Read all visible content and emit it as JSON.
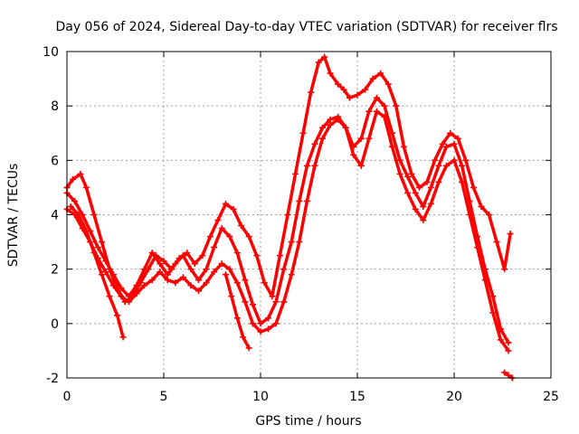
{
  "chart_data": {
    "type": "scatter",
    "title": "Day 056 of 2024, Sidereal Day-to-day VTEC variation (SDTVAR) for receiver flrs",
    "xlabel": "GPS time / hours",
    "ylabel": "SDTVAR / TECUs",
    "xlim": [
      0,
      25
    ],
    "ylim": [
      -2,
      10
    ],
    "xticks": [
      0,
      5,
      10,
      15,
      20,
      25
    ],
    "yticks": [
      -2,
      0,
      2,
      4,
      6,
      8,
      10
    ],
    "grid": true,
    "marker": "plus",
    "color": "#ff0000",
    "series": [
      {
        "x": [
          0.0,
          0.3,
          0.7,
          1.0,
          1.4,
          1.8,
          2.2,
          2.6,
          3.0,
          3.4,
          3.8,
          4.2,
          4.6,
          5.0,
          5.4,
          5.8,
          6.2,
          6.6,
          7.0,
          7.4,
          7.8,
          8.2,
          8.6,
          9.0,
          9.4,
          9.8,
          10.2,
          10.6,
          11.0,
          11.4,
          11.8,
          12.2,
          12.6,
          13.0,
          13.3,
          13.6,
          14.0,
          14.3,
          14.6,
          15.0,
          15.4,
          15.8,
          16.2,
          16.6,
          17.0,
          17.4,
          17.8,
          18.2,
          18.6,
          19.0,
          19.4,
          19.8,
          20.2,
          20.6,
          21.0,
          21.4,
          21.8,
          22.2,
          22.6,
          22.9
        ],
        "y": [
          5.0,
          5.3,
          5.5,
          5.0,
          4.0,
          3.0,
          2.0,
          1.3,
          0.8,
          1.0,
          1.5,
          2.0,
          2.5,
          2.3,
          2.0,
          2.4,
          2.6,
          2.2,
          2.5,
          3.2,
          3.8,
          4.4,
          4.2,
          3.6,
          3.2,
          2.5,
          1.5,
          1.0,
          2.5,
          4.0,
          5.5,
          7.0,
          8.5,
          9.6,
          9.8,
          9.2,
          8.8,
          8.6,
          8.3,
          8.4,
          8.6,
          9.0,
          9.2,
          8.8,
          8.0,
          6.5,
          5.5,
          5.0,
          5.2,
          6.0,
          6.6,
          7.0,
          6.8,
          6.0,
          5.0,
          4.3,
          4.0,
          3.0,
          2.0,
          3.3
        ]
      },
      {
        "x": [
          0.0,
          0.4,
          0.8,
          1.2,
          1.6,
          2.0,
          2.4,
          2.8,
          3.2,
          3.6,
          4.0,
          4.4,
          4.8,
          5.2,
          5.6,
          6.0,
          6.4,
          6.8,
          7.2,
          7.6,
          8.0,
          8.4,
          8.8,
          9.2,
          9.6,
          10.0,
          10.4,
          10.8,
          11.2,
          11.6,
          12.0,
          12.4,
          12.8,
          13.2,
          13.6,
          14.0,
          14.4,
          14.8,
          15.2,
          15.6,
          16.0,
          16.4,
          16.8,
          17.2,
          17.6,
          18.0,
          18.4,
          18.8,
          19.2,
          19.6,
          20.0,
          20.4,
          20.8,
          21.2,
          21.6,
          22.0,
          22.4,
          22.8
        ],
        "y": [
          4.8,
          4.5,
          4.0,
          3.4,
          2.8,
          2.3,
          1.8,
          1.3,
          1.0,
          1.4,
          2.0,
          2.6,
          2.2,
          1.8,
          2.2,
          2.5,
          2.0,
          1.6,
          2.0,
          2.8,
          3.5,
          3.2,
          2.6,
          1.6,
          0.7,
          0.0,
          0.2,
          0.8,
          2.0,
          3.0,
          4.5,
          5.8,
          6.6,
          7.2,
          7.5,
          7.6,
          7.2,
          6.5,
          6.8,
          7.8,
          8.3,
          8.0,
          7.0,
          6.0,
          5.4,
          4.8,
          4.3,
          5.0,
          5.8,
          6.5,
          6.6,
          5.8,
          4.5,
          3.2,
          2.0,
          1.0,
          -0.2,
          -0.7
        ]
      },
      {
        "x": [
          0.0,
          0.4,
          0.8,
          1.2,
          1.6,
          2.0,
          2.4,
          2.8,
          3.2,
          3.6,
          4.0,
          4.4,
          4.8,
          5.2,
          5.6,
          6.0,
          6.4,
          6.8,
          7.2,
          7.6,
          8.0,
          8.4,
          8.8,
          9.2,
          9.6,
          10.0,
          10.4,
          10.8,
          11.2,
          11.6,
          12.0,
          12.4,
          12.8,
          13.2,
          13.6,
          14.0,
          14.4,
          14.8,
          15.2,
          15.6,
          16.0,
          16.4,
          16.8,
          17.2,
          17.6,
          18.0,
          18.4,
          18.8,
          19.2,
          19.6,
          20.0,
          20.4,
          20.8,
          21.2,
          21.6,
          22.0,
          22.4,
          22.8
        ],
        "y": [
          4.2,
          4.0,
          3.5,
          3.0,
          2.4,
          1.9,
          1.4,
          1.0,
          0.8,
          1.1,
          1.4,
          1.6,
          1.9,
          1.6,
          1.5,
          1.7,
          1.4,
          1.2,
          1.5,
          1.9,
          2.2,
          2.0,
          1.5,
          0.8,
          0.0,
          -0.3,
          -0.2,
          0.0,
          0.8,
          1.8,
          3.0,
          4.5,
          5.8,
          6.8,
          7.3,
          7.5,
          7.2,
          6.2,
          5.8,
          6.8,
          7.8,
          7.6,
          6.5,
          5.5,
          4.8,
          4.2,
          3.8,
          4.4,
          5.2,
          5.8,
          6.0,
          5.2,
          4.0,
          2.8,
          1.6,
          0.4,
          -0.6,
          -1.0
        ]
      },
      {
        "x": [
          0.2,
          0.6,
          1.0,
          1.4,
          1.8,
          2.2,
          2.6,
          2.9
        ],
        "y": [
          4.3,
          4.0,
          3.4,
          2.6,
          1.8,
          1.0,
          0.3,
          -0.5
        ]
      },
      {
        "x": [
          8.2,
          8.5,
          8.8,
          9.1,
          9.4
        ],
        "y": [
          1.8,
          1.0,
          0.2,
          -0.5,
          -0.9
        ]
      },
      {
        "x": [
          22.6,
          22.8,
          23.0
        ],
        "y": [
          -1.8,
          -1.9,
          -2.0
        ]
      }
    ]
  }
}
